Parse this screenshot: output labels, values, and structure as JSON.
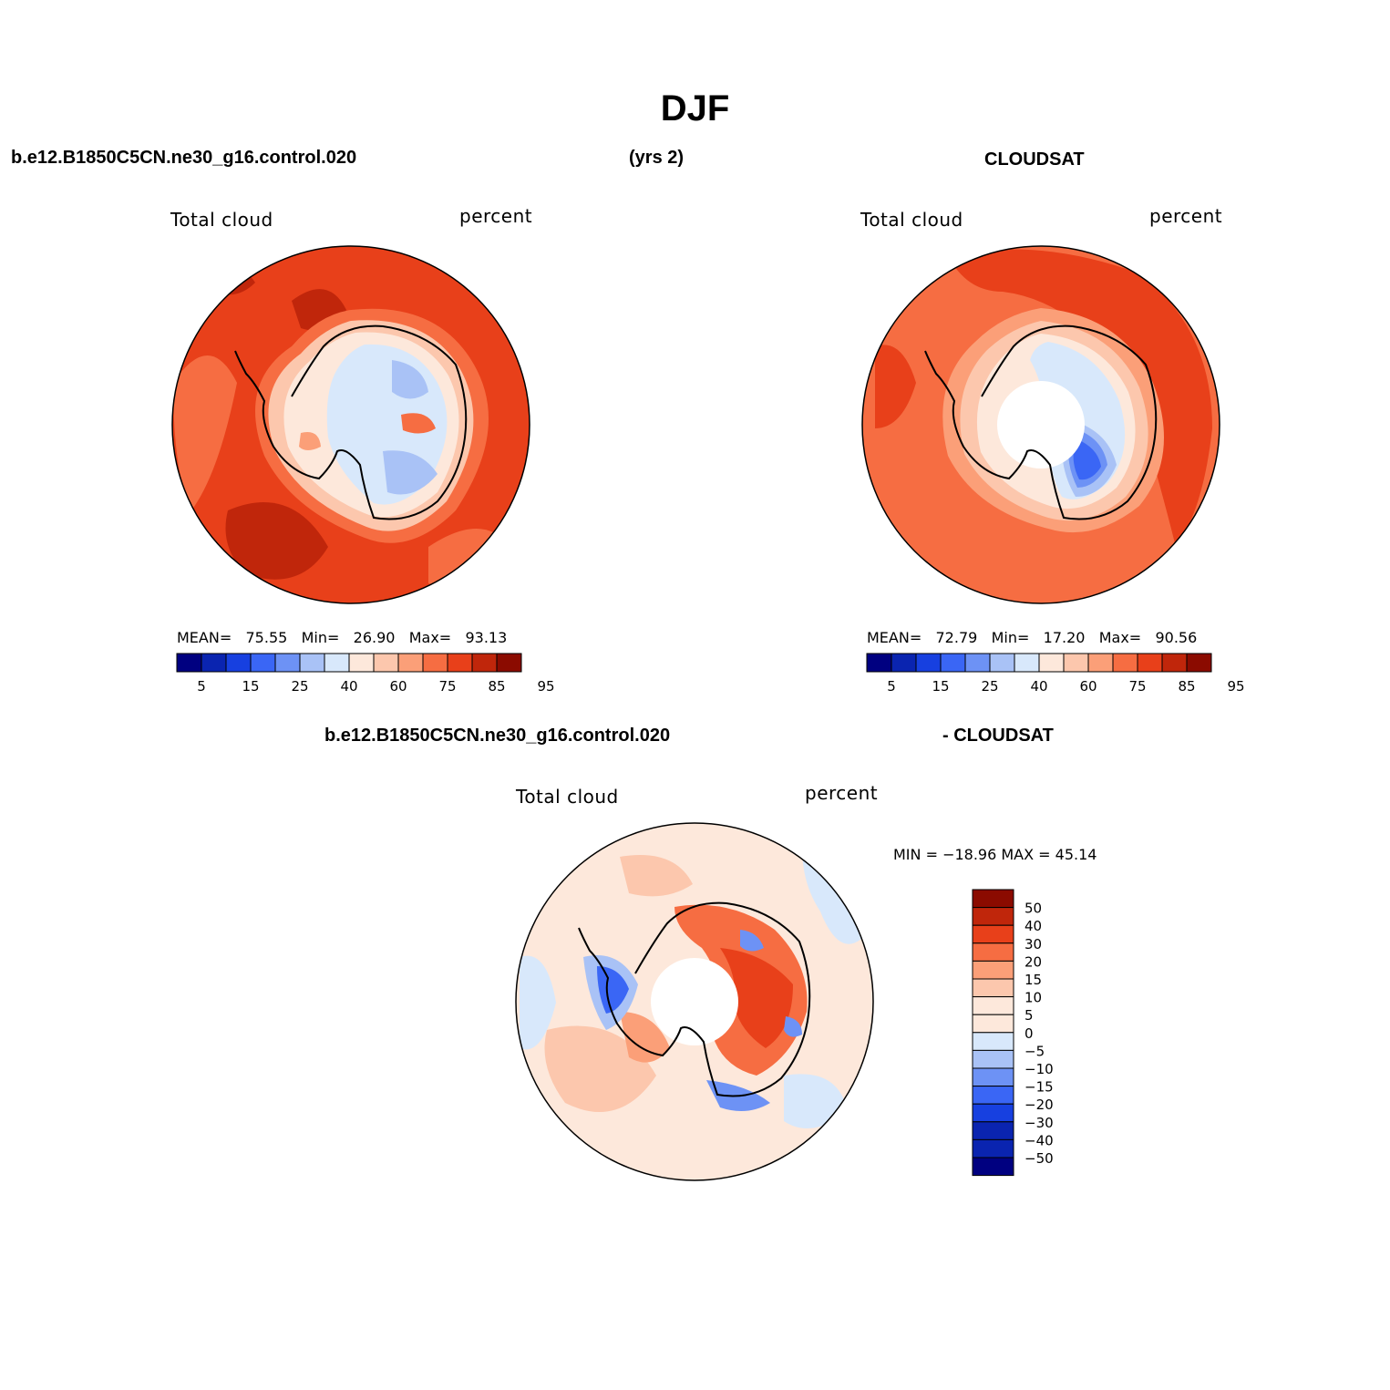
{
  "title": "DJF",
  "header": {
    "case_name": "b.e12.B1850C5CN.ne30_g16.control.020",
    "years": "(yrs 2)",
    "obs_name": "CLOUDSAT",
    "diff_case": "b.e12.B1850C5CN.ne30_g16.control.020",
    "diff_obs": "- CLOUDSAT"
  },
  "panels": {
    "model": {
      "variable": "Total cloud",
      "units": "percent",
      "stats": {
        "mean_label": "MEAN=",
        "mean": "75.55",
        "min_label": "Min=",
        "min": "26.90",
        "max_label": "Max=",
        "max": "93.13"
      }
    },
    "obs": {
      "variable": "Total cloud",
      "units": "percent",
      "stats": {
        "mean_label": "MEAN=",
        "mean": "72.79",
        "min_label": "Min=",
        "min": "17.20",
        "max_label": "Max=",
        "max": "90.56"
      }
    },
    "diff": {
      "variable": "Total cloud",
      "units": "percent",
      "minmax": "MIN = −18.96 MAX =  45.14"
    }
  },
  "colorbar_abs": {
    "tick_labels": [
      "5",
      "15",
      "25",
      "40",
      "60",
      "75",
      "85",
      "95"
    ],
    "colors": [
      "#000080",
      "#0a24b0",
      "#1740e0",
      "#3a66f5",
      "#6d92f5",
      "#a9c2f6",
      "#d8e8fb",
      "#fde8db",
      "#fcc7ad",
      "#fb9f78",
      "#f66d42",
      "#e8401a",
      "#c0260b",
      "#8b0b00"
    ]
  },
  "colorbar_diff": {
    "tick_labels": [
      "50",
      "40",
      "30",
      "20",
      "15",
      "10",
      "5",
      "0",
      "−5",
      "−10",
      "−15",
      "−20",
      "−30",
      "−40",
      "−50"
    ],
    "colors": [
      "#8b0b00",
      "#c0260b",
      "#e8401a",
      "#f66d42",
      "#fb9f78",
      "#fcc7ad",
      "#fde8db",
      "#fde8db",
      "#d8e8fb",
      "#a9c2f6",
      "#6d92f5",
      "#3a66f5",
      "#1740e0",
      "#0a24b0",
      "#0a24b0",
      "#000080"
    ]
  }
}
